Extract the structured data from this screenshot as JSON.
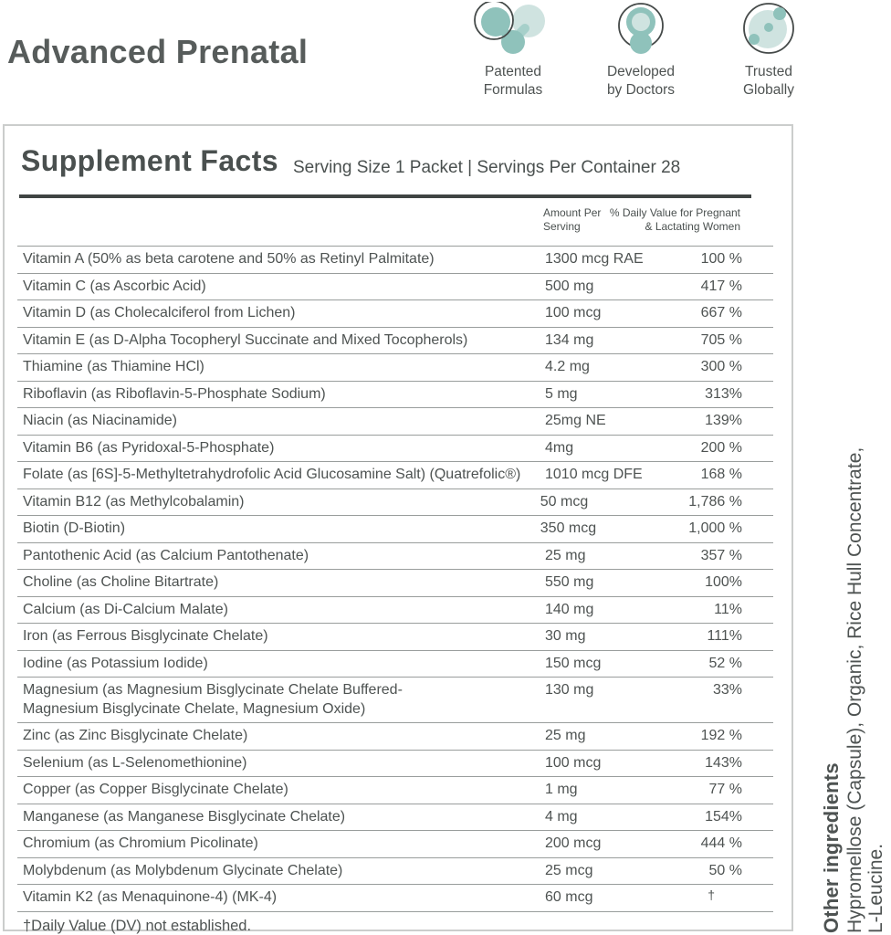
{
  "page": {
    "title": "Advanced Prenatal"
  },
  "badges": [
    {
      "icon": "molecule-icon",
      "label": "Patented\nFormulas"
    },
    {
      "icon": "doctor-icon",
      "label": "Developed\nby Doctors"
    },
    {
      "icon": "globe-icon",
      "label": "Trusted\nGlobally"
    }
  ],
  "supplement_facts": {
    "title": "Supplement Facts",
    "serving_info": "Serving Size 1 Packet | Servings Per Container 28",
    "columns": {
      "amount": "Amount Per\nServing",
      "dv": "% Daily Value for Pregnant\n& Lactating Women"
    },
    "rows": [
      {
        "name": "Vitamin A (50% as beta carotene and 50% as Retinyl Palmitate)",
        "amount": "1300 mcg RAE",
        "dv": "100 %"
      },
      {
        "name": "Vitamin C (as Ascorbic Acid)",
        "amount": "500 mg",
        "dv": "417 %"
      },
      {
        "name": "Vitamin D (as Cholecalciferol from Lichen)",
        "amount": "100 mcg",
        "dv": "667 %"
      },
      {
        "name": "Vitamin E (as D-Alpha Tocopheryl Succinate and Mixed Tocopherols)",
        "amount": "134 mg",
        "dv": "705 %"
      },
      {
        "name": "Thiamine (as Thiamine HCl)",
        "amount": "4.2 mg",
        "dv": "300 %"
      },
      {
        "name": "Riboflavin (as Riboflavin-5-Phosphate Sodium)",
        "amount": "5 mg",
        "dv": "313%"
      },
      {
        "name": "Niacin (as Niacinamide)",
        "amount": "25mg NE",
        "dv": "139%"
      },
      {
        "name": "Vitamin B6 (as Pyridoxal-5-Phosphate)",
        "amount": "4mg",
        "dv": "200 %"
      },
      {
        "name": "Folate (as [6S]-5-Methyltetrahydrofolic Acid Glucosamine Salt) (Quatrefolic®)",
        "amount": "1010 mcg DFE",
        "dv": "168 %"
      },
      {
        "name": "Vitamin B12 (as Methylcobalamin)",
        "amount": "50 mcg",
        "dv": "1,786 %"
      },
      {
        "name": "Biotin (D-Biotin)",
        "amount": "350 mcg",
        "dv": "1,000 %"
      },
      {
        "name": "Pantothenic Acid (as Calcium Pantothenate)",
        "amount": "25 mg",
        "dv": "357 %"
      },
      {
        "name": "Choline (as Choline Bitartrate)",
        "amount": "550 mg",
        "dv": "100%"
      },
      {
        "name": "Calcium (as Di-Calcium Malate)",
        "amount": "140 mg",
        "dv": "11%"
      },
      {
        "name": "Iron (as Ferrous Bisglycinate Chelate)",
        "amount": "30 mg",
        "dv": "111%"
      },
      {
        "name": "Iodine (as Potassium Iodide)",
        "amount": "150 mcg",
        "dv": "52 %"
      },
      {
        "name": "Magnesium (as Magnesium Bisglycinate Chelate Buffered-\nMagnesium Bisglycinate Chelate, Magnesium Oxide)",
        "amount": "130 mg",
        "dv": "33%"
      },
      {
        "name": "Zinc (as Zinc Bisglycinate Chelate)",
        "amount": "25 mg",
        "dv": "192 %"
      },
      {
        "name": "Selenium (as L-Selenomethionine)",
        "amount": "100 mcg",
        "dv": "143%"
      },
      {
        "name": "Copper (as Copper Bisglycinate Chelate)",
        "amount": "1 mg",
        "dv": "77 %"
      },
      {
        "name": "Manganese (as Manganese Bisglycinate Chelate)",
        "amount": "4 mg",
        "dv": "154%"
      },
      {
        "name": "Chromium (as Chromium Picolinate)",
        "amount": "200 mcg",
        "dv": "444 %"
      },
      {
        "name": "Molybdenum (as Molybdenum Glycinate Chelate)",
        "amount": "25 mcg",
        "dv": "50 %"
      },
      {
        "name": "Vitamin K2 (as Menaquinone-4) (MK-4)",
        "amount": "60 mcg",
        "dv": "†"
      }
    ],
    "footnote": "†Daily Value (DV) not established."
  },
  "other_ingredients": {
    "title": "Other ingredients",
    "text_line1": "Hypromellose (Capsule), Organic, Rice Hull Concentrate,",
    "text_line2": "L-Leucine."
  },
  "colors": {
    "text": "#4e5352",
    "teal_medium": "#8fc2bb",
    "teal_light": "#cfe3e0",
    "rule_dark": "#3f4443",
    "divider": "#999d9c",
    "box_border": "#cbcdcc"
  }
}
